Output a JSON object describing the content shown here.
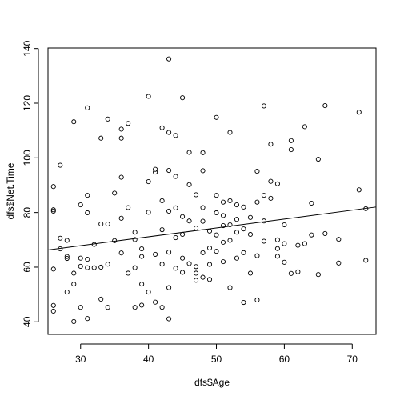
{
  "chart_data": {
    "type": "scatter",
    "title": "",
    "xlabel": "dfs$Age",
    "ylabel": "dfs$Net.Time",
    "xlim": [
      25.2,
      73.5
    ],
    "ylim": [
      35.4,
      140.2
    ],
    "xticks": [
      30,
      40,
      50,
      60,
      70
    ],
    "yticks": [
      40,
      60,
      80,
      100,
      120,
      140
    ],
    "grid": false,
    "legend": "none",
    "colors": {
      "points": "#000000",
      "line": "#000000",
      "background": "#ffffff"
    },
    "regression_line": {
      "x": [
        25.2,
        73.5
      ],
      "y": [
        66.3,
        82.0
      ]
    },
    "series": [
      {
        "x": [
          26,
          26,
          26,
          26,
          26,
          26,
          27,
          27,
          27,
          28,
          28,
          28,
          28,
          29,
          29,
          29,
          29,
          30,
          30,
          30,
          30,
          31,
          31,
          31,
          31,
          31,
          31,
          32,
          32,
          33,
          33,
          33,
          33,
          34,
          34,
          34,
          34,
          35,
          35,
          36,
          36,
          36,
          36,
          36,
          37,
          37,
          37,
          38,
          38,
          38,
          38,
          39,
          39,
          39,
          39,
          40,
          40,
          40,
          40,
          41,
          41,
          41,
          41,
          42,
          42,
          42,
          42,
          42,
          43,
          43,
          43,
          43,
          43,
          43,
          43,
          44,
          44,
          44,
          44,
          44,
          45,
          45,
          45,
          45,
          45,
          46,
          46,
          46,
          46,
          47,
          47,
          47,
          47,
          47,
          48,
          48,
          48,
          48,
          48,
          48,
          49,
          49,
          49,
          49,
          50,
          50,
          50,
          50,
          50,
          51,
          51,
          51,
          51,
          51,
          52,
          52,
          52,
          52,
          52,
          53,
          53,
          53,
          53,
          54,
          54,
          54,
          54,
          55,
          55,
          55,
          56,
          56,
          56,
          56,
          57,
          57,
          57,
          57,
          58,
          58,
          58,
          59,
          59,
          59,
          59,
          60,
          60,
          60,
          61,
          61,
          61,
          62,
          62,
          63,
          63,
          64,
          64,
          65,
          65,
          66,
          66,
          68,
          68,
          71,
          71,
          72,
          72
        ],
        "y": [
          89.5,
          81.0,
          80.5,
          59.3,
          46.0,
          43.9,
          97.3,
          70.6,
          66.7,
          69.8,
          63.9,
          63.2,
          50.9,
          113.2,
          57.8,
          53.8,
          40.1,
          82.8,
          63.3,
          60.3,
          45.3,
          118.3,
          86.3,
          79.9,
          62.9,
          59.8,
          41.2,
          68.3,
          59.8,
          107.2,
          75.8,
          60.0,
          48.3,
          114.2,
          75.8,
          61.1,
          45.3,
          87.1,
          69.7,
          110.5,
          107.2,
          92.9,
          77.9,
          65.2,
          112.6,
          81.8,
          57.8,
          72.8,
          59.8,
          70.1,
          45.3,
          66.7,
          63.9,
          53.8,
          46.1,
          122.5,
          91.3,
          80.1,
          50.9,
          95.8,
          94.8,
          64.7,
          47.2,
          111.0,
          84.3,
          73.7,
          61.1,
          45.3,
          136.2,
          109.3,
          95.4,
          80.5,
          65.5,
          52.5,
          41.1,
          108.2,
          93.2,
          81.7,
          70.8,
          59.6,
          122.0,
          78.5,
          72.0,
          63.3,
          58.1,
          102.0,
          90.2,
          76.9,
          61.3,
          86.5,
          74.3,
          60.2,
          57.8,
          55.2,
          101.9,
          95.3,
          81.8,
          76.8,
          65.3,
          56.3,
          73.2,
          67.0,
          61.0,
          55.5,
          114.8,
          86.3,
          79.9,
          71.8,
          65.8,
          83.8,
          78.9,
          75.2,
          69.1,
          62.0,
          109.3,
          84.3,
          75.5,
          69.8,
          52.5,
          82.8,
          77.5,
          72.8,
          63.3,
          82.0,
          74.0,
          65.3,
          47.1,
          78.2,
          72.0,
          57.8,
          95.1,
          83.8,
          64.2,
          48.0,
          119.0,
          86.3,
          76.9,
          69.5,
          105.0,
          91.4,
          85.2,
          90.5,
          70.0,
          66.8,
          64.0,
          75.5,
          68.6,
          61.8,
          106.3,
          103.0,
          57.7,
          68.0,
          58.3,
          111.4,
          68.6,
          83.4,
          71.8,
          99.5,
          57.3,
          119.1,
          72.3,
          70.2,
          61.5,
          116.7,
          88.3,
          81.4,
          62.5
        ]
      }
    ]
  }
}
